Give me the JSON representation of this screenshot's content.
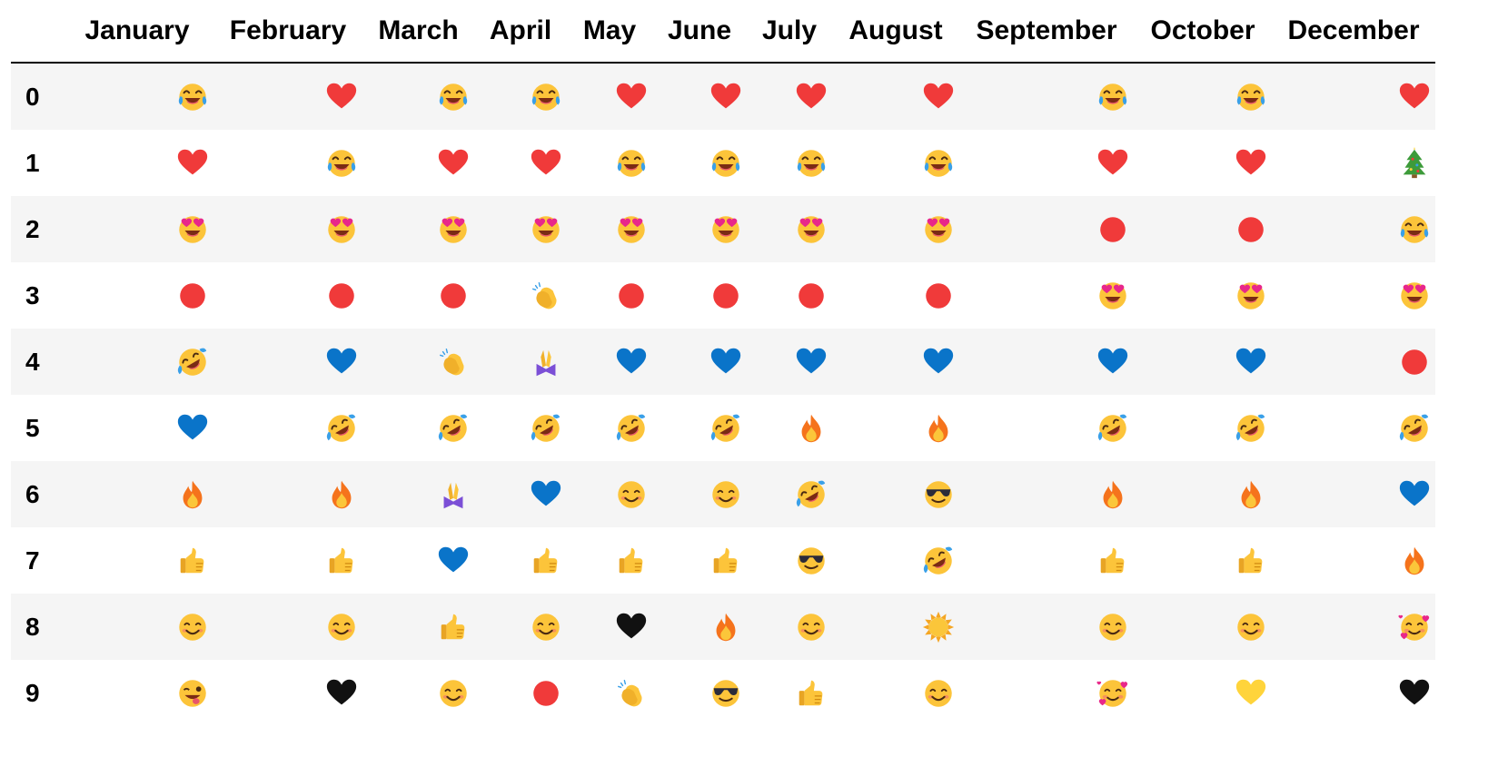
{
  "columns": [
    "",
    "January",
    "February",
    "March",
    "April",
    "May",
    "June",
    "July",
    "August",
    "September",
    "October",
    "December"
  ],
  "index": [
    "0",
    "1",
    "2",
    "3",
    "4",
    "5",
    "6",
    "7",
    "8",
    "9"
  ],
  "chart_data": {
    "type": "table",
    "columns": [
      "January",
      "February",
      "March",
      "April",
      "May",
      "June",
      "July",
      "August",
      "September",
      "October",
      "December"
    ],
    "index": [
      "0",
      "1",
      "2",
      "3",
      "4",
      "5",
      "6",
      "7",
      "8",
      "9"
    ],
    "rows": [
      [
        "😂",
        "❤️",
        "😂",
        "😂",
        "❤️",
        "❤️",
        "❤️",
        "❤️",
        "😂",
        "😂",
        "❤️"
      ],
      [
        "❤️",
        "😂",
        "❤️",
        "❤️",
        "😂",
        "😂",
        "😂",
        "😂",
        "❤️",
        "❤️",
        "🎄"
      ],
      [
        "😍",
        "😍",
        "😍",
        "😍",
        "😍",
        "😍",
        "😍",
        "😍",
        "🔴",
        "🔴",
        "😂"
      ],
      [
        "🔴",
        "🔴",
        "🔴",
        "👏",
        "🔴",
        "🔴",
        "🔴",
        "🔴",
        "😍",
        "😍",
        "😍"
      ],
      [
        "🤣",
        "💙",
        "👏",
        "🙏",
        "💙",
        "💙",
        "💙",
        "💙",
        "💙",
        "💙",
        "🔴"
      ],
      [
        "💙",
        "🤣",
        "🤣",
        "🤣",
        "🤣",
        "🤣",
        "🔥",
        "🔥",
        "🤣",
        "🤣",
        "🤣"
      ],
      [
        "🔥",
        "🔥",
        "🙏",
        "💙",
        "😊",
        "😊",
        "🤣",
        "😎",
        "🔥",
        "🔥",
        "💙"
      ],
      [
        "👍",
        "👍",
        "💙",
        "👍",
        "👍",
        "👍",
        "😎",
        "🤣",
        "👍",
        "👍",
        "🔥"
      ],
      [
        "😊",
        "😊",
        "👍",
        "😊",
        "🖤",
        "🔥",
        "😊",
        "☀️",
        "😊",
        "😊",
        "🥰"
      ],
      [
        "😜",
        "🖤",
        "😊",
        "🔴",
        "👏",
        "😎",
        "👍",
        "😊",
        "🥰",
        "💛",
        "🖤"
      ]
    ]
  },
  "icons": {
    "😂": "face-with-tears-of-joy-icon",
    "❤️": "red-heart-icon",
    "😍": "heart-eyes-face-icon",
    "🔴": "red-circle-icon",
    "🤣": "rolling-laughing-face-icon",
    "💙": "blue-heart-icon",
    "🔥": "fire-icon",
    "👍": "thumbs-up-icon",
    "😊": "smiling-face-icon",
    "😜": "winking-tongue-face-icon",
    "👏": "clapping-hands-icon",
    "🙏": "folded-hands-icon",
    "🖤": "black-heart-icon",
    "🎄": "christmas-tree-icon",
    "😎": "sunglasses-face-icon",
    "☀️": "sun-icon",
    "🥰": "smiling-face-with-hearts-icon",
    "💛": "yellow-heart-icon"
  },
  "colors": {
    "face": "#FCC43A",
    "red": "#F03A3A",
    "blue": "#0A74C9",
    "black": "#111111",
    "gold": "#FFD43B",
    "header_rule": "#000000",
    "stripe": "#F5F5F5"
  }
}
